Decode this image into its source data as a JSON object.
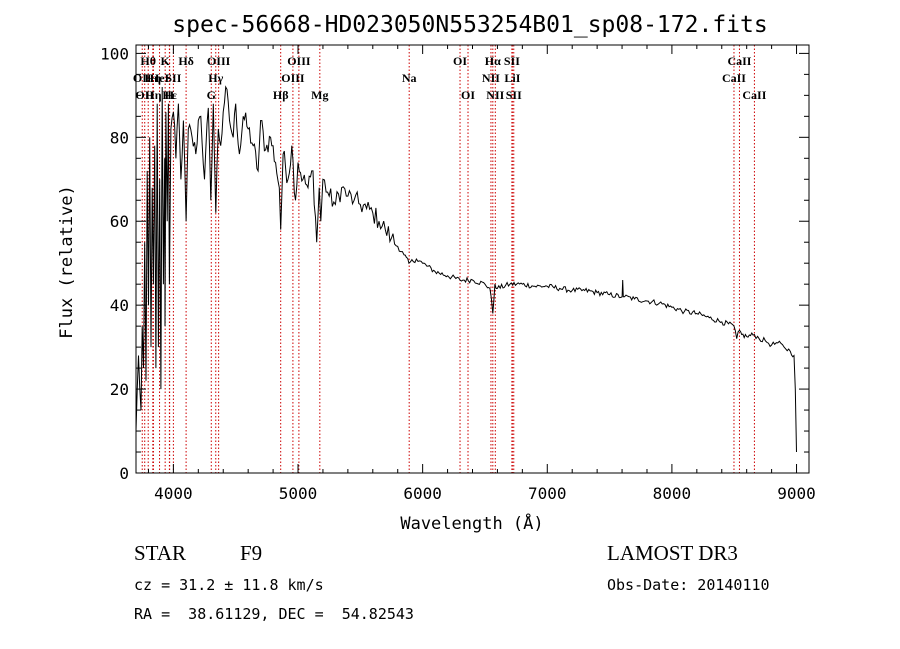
{
  "chart_data": {
    "type": "line",
    "title": "spec-56668-HD023050N553254B01_sp08-172.fits",
    "xlabel": "Wavelength (Å)",
    "ylabel": "Flux (relative)",
    "xlim": [
      3700,
      9100
    ],
    "ylim": [
      0,
      102
    ],
    "xticks": [
      4000,
      5000,
      6000,
      7000,
      8000,
      9000
    ],
    "xtick_labels": [
      "4000",
      "5000",
      "6000",
      "7000",
      "8000",
      "9000"
    ],
    "yticks": [
      0,
      20,
      40,
      60,
      80,
      100
    ],
    "ytick_labels": [
      "0",
      "20",
      "40",
      "60",
      "80",
      "100"
    ],
    "grid": false,
    "series": [
      {
        "name": "flux",
        "color": "#000000",
        "x": [
          3700,
          3720,
          3740,
          3750,
          3760,
          3770,
          3780,
          3790,
          3800,
          3810,
          3820,
          3830,
          3840,
          3850,
          3860,
          3870,
          3880,
          3890,
          3900,
          3910,
          3920,
          3930,
          3933,
          3940,
          3950,
          3960,
          3968,
          3980,
          4000,
          4020,
          4040,
          4060,
          4080,
          4102,
          4120,
          4150,
          4180,
          4200,
          4220,
          4250,
          4280,
          4300,
          4320,
          4340,
          4360,
          4380,
          4400,
          4420,
          4450,
          4480,
          4500,
          4530,
          4560,
          4600,
          4640,
          4680,
          4700,
          4740,
          4780,
          4820,
          4850,
          4861,
          4880,
          4920,
          4950,
          4980,
          5000,
          5040,
          5080,
          5120,
          5150,
          5170,
          5183,
          5200,
          5250,
          5300,
          5350,
          5400,
          5450,
          5500,
          5550,
          5600,
          5650,
          5700,
          5750,
          5800,
          5850,
          5890,
          5950,
          6000,
          6100,
          6200,
          6300,
          6400,
          6500,
          6540,
          6563,
          6580,
          6600,
          6700,
          6800,
          6900,
          7000,
          7100,
          7200,
          7300,
          7400,
          7500,
          7600,
          7605,
          7610,
          7620,
          7700,
          7800,
          7900,
          8000,
          8100,
          8200,
          8300,
          8400,
          8498,
          8520,
          8542,
          8560,
          8600,
          8662,
          8700,
          8750,
          8800,
          8850,
          8900,
          8950,
          8980,
          8990,
          9000
        ],
        "values": [
          10,
          28,
          15,
          35,
          25,
          55,
          22,
          72,
          40,
          80,
          30,
          68,
          45,
          78,
          25,
          88,
          30,
          70,
          20,
          92,
          45,
          75,
          35,
          86,
          60,
          88,
          45,
          82,
          86,
          75,
          88,
          70,
          84,
          60,
          82,
          80,
          76,
          84,
          85,
          70,
          87,
          65,
          88,
          62,
          82,
          78,
          86,
          92,
          84,
          80,
          88,
          76,
          85,
          82,
          78,
          72,
          84,
          77,
          80,
          74,
          68,
          58,
          76,
          70,
          78,
          65,
          74,
          70,
          68,
          72,
          55,
          68,
          60,
          70,
          66,
          64,
          68,
          66,
          65,
          64,
          63,
          62,
          60,
          58,
          56,
          54,
          52,
          50,
          51,
          50,
          48,
          47,
          46,
          46,
          45,
          44,
          38,
          45,
          44,
          45,
          45,
          44.5,
          44.5,
          44,
          43.5,
          43.5,
          43,
          42.5,
          42,
          46,
          42,
          42,
          41.5,
          41,
          40.5,
          39.5,
          38.5,
          38,
          37,
          36,
          35,
          32,
          34,
          33,
          32.5,
          33,
          32,
          31.5,
          30.5,
          31,
          30,
          29,
          28,
          20,
          5
        ]
      }
    ],
    "lines": [
      {
        "x": 3750,
        "label": "OII",
        "row": 2,
        "anchor": "middle"
      },
      {
        "x": 3770,
        "label": "OII",
        "row": 3,
        "anchor": "middle"
      },
      {
        "x": 3798,
        "label": "Hθ",
        "row": 1,
        "anchor": "middle"
      },
      {
        "x": 3835,
        "label": "Hη",
        "row": 2,
        "anchor": "middle"
      },
      {
        "x": 3840,
        "label": "Hη",
        "row": 3,
        "anchor": "middle"
      },
      {
        "x": 3889,
        "label": "HeI",
        "row": 2,
        "anchor": "middle"
      },
      {
        "x": 3934,
        "label": "K",
        "row": 1,
        "anchor": "middle"
      },
      {
        "x": 3968,
        "label": "H",
        "row": 3,
        "anchor": "middle"
      },
      {
        "x": 3970,
        "label": "Hε",
        "row": 3,
        "anchor": "middle"
      },
      {
        "x": 4000,
        "label": "SII",
        "row": 2,
        "anchor": "middle"
      },
      {
        "x": 4102,
        "label": "Hδ",
        "row": 1,
        "anchor": "middle"
      },
      {
        "x": 4304,
        "label": "G",
        "row": 3,
        "anchor": "middle"
      },
      {
        "x": 4340,
        "label": "Hγ",
        "row": 2,
        "anchor": "middle"
      },
      {
        "x": 4363,
        "label": "OIII",
        "row": 1,
        "anchor": "middle"
      },
      {
        "x": 4861,
        "label": "Hβ",
        "row": 3,
        "anchor": "middle"
      },
      {
        "x": 4959,
        "label": "OIII",
        "row": 2,
        "anchor": "middle"
      },
      {
        "x": 5007,
        "label": "OIII",
        "row": 1,
        "anchor": "middle"
      },
      {
        "x": 5175,
        "label": "Mg",
        "row": 3,
        "anchor": "middle"
      },
      {
        "x": 5892,
        "label": "Na",
        "row": 2,
        "anchor": "middle"
      },
      {
        "x": 6300,
        "label": "OI",
        "row": 1,
        "anchor": "middle"
      },
      {
        "x": 6364,
        "label": "OI",
        "row": 3,
        "anchor": "middle"
      },
      {
        "x": 6548,
        "label": "NII",
        "row": 2,
        "anchor": "middle"
      },
      {
        "x": 6563,
        "label": "Hα",
        "row": 1,
        "anchor": "middle"
      },
      {
        "x": 6583,
        "label": "NII",
        "row": 3,
        "anchor": "middle"
      },
      {
        "x": 6716,
        "label": "SII",
        "row": 1,
        "anchor": "middle"
      },
      {
        "x": 6720,
        "label": "LiI",
        "row": 2,
        "anchor": "middle"
      },
      {
        "x": 6731,
        "label": "SII",
        "row": 3,
        "anchor": "middle"
      },
      {
        "x": 8498,
        "label": "CaII",
        "row": 2,
        "anchor": "middle"
      },
      {
        "x": 8542,
        "label": "CaII",
        "row": 1,
        "anchor": "middle"
      },
      {
        "x": 8662,
        "label": "CaII",
        "row": 3,
        "anchor": "middle"
      }
    ],
    "line_color": "#cc0000"
  },
  "info": {
    "class": "STAR",
    "subclass": "F9",
    "survey": "LAMOST DR3",
    "cz": "cz = 31.2 ± 11.8 km/s",
    "obs_date": "Obs-Date: 20140110",
    "radec": "RA =  38.61129, DEC =  54.82543"
  }
}
